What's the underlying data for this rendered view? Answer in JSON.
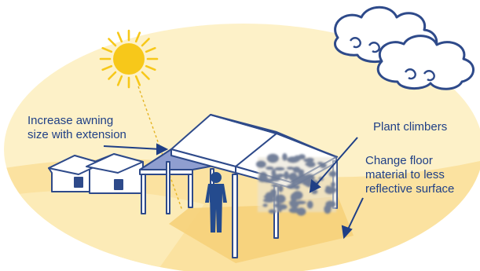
{
  "labels": {
    "awning_line1": "Increase awning",
    "awning_line2": "size with extension",
    "plant": "Plant climbers",
    "floor_line1": "Change floor",
    "floor_line2": "material to less",
    "floor_line3": "reflective surface"
  },
  "colors": {
    "sky_ellipse": "#fdf1c8",
    "ground": "#fbe2a0",
    "ground_light": "#fdeebd",
    "floor_patch": "#f6d27a",
    "sun": "#f7c81a",
    "outline": "#2e4a8a",
    "text": "#1f3f86",
    "person": "#244b8e",
    "awning_shadow": "#8f9ed0",
    "foliage": "#6d7b96"
  },
  "icons": {
    "sun": "sun-icon",
    "clouds": "cloud-icon",
    "person": "person-icon"
  }
}
